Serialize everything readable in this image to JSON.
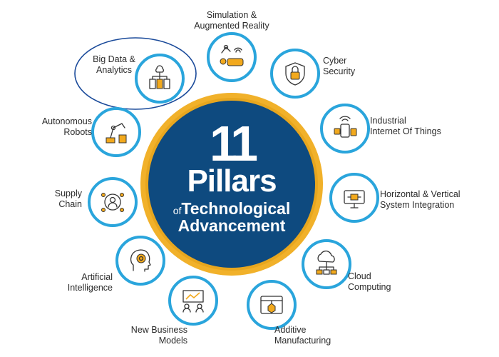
{
  "center": {
    "number": "11",
    "line1": "Pillars",
    "line2_prefix": "of",
    "line2_main": "Technological",
    "line3": "Advancement"
  },
  "pillars": [
    {
      "lines": [
        "Simulation &",
        "Augmented Reality"
      ],
      "icon": "vr-headset-robot-arm-icon"
    },
    {
      "lines": [
        "Cyber",
        "Security"
      ],
      "icon": "shield-lock-icon"
    },
    {
      "lines": [
        "Industrial",
        "Internet Of Things"
      ],
      "icon": "connected-devices-icon"
    },
    {
      "lines": [
        "Horizontal & Vertical",
        "System Integration"
      ],
      "icon": "integrated-chip-monitor-icon"
    },
    {
      "lines": [
        "Cloud",
        "Computing"
      ],
      "icon": "cloud-network-icon"
    },
    {
      "lines": [
        "Additive",
        "Manufacturing"
      ],
      "icon": "3d-printer-icon"
    },
    {
      "lines": [
        "New Business",
        "Models"
      ],
      "icon": "business-presentation-icon"
    },
    {
      "lines": [
        "Artificial",
        "Intelligence"
      ],
      "icon": "ai-head-icon"
    },
    {
      "lines": [
        "Supply",
        "Chain"
      ],
      "icon": "supply-chain-person-icon"
    },
    {
      "lines": [
        "Autonomous",
        "Robots"
      ],
      "icon": "robot-arm-icon"
    },
    {
      "lines": [
        "Big Data &",
        "Analytics"
      ],
      "icon": "data-servers-icon"
    }
  ],
  "highlighted": "Big Data & Analytics",
  "colors": {
    "center_fill": "#0e4a7f",
    "center_ring": "#f1b12a",
    "bubble_border": "#2aa5dc",
    "icon_stroke": "#333333",
    "icon_accent": "#f2a91d",
    "highlight_outline": "#1a4a9a"
  }
}
